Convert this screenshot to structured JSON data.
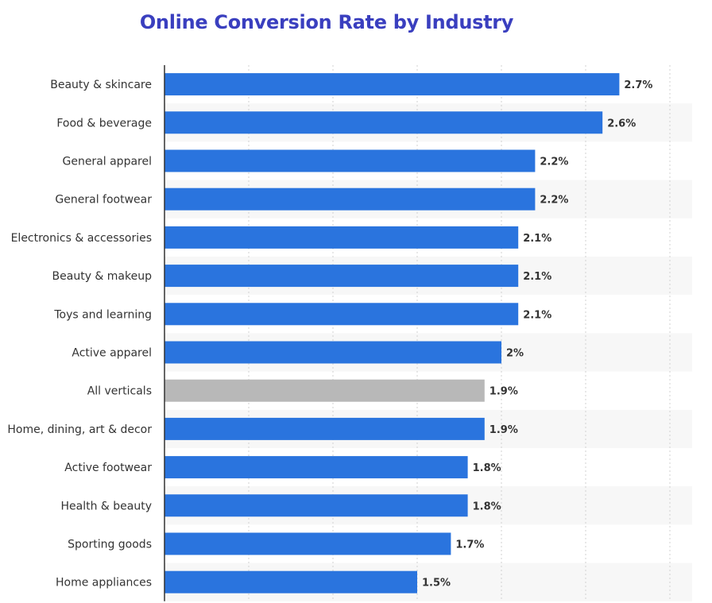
{
  "chart_data": {
    "type": "bar",
    "orientation": "horizontal",
    "title": "Online Conversion Rate by Industry",
    "xlabel": "",
    "ylabel": "",
    "xlim": [
      0,
      3
    ],
    "value_suffix": "%",
    "grid": true,
    "categories": [
      "Beauty & skincare",
      "Food & beverage",
      "General apparel",
      "General footwear",
      "Electronics & accessories",
      "Beauty & makeup",
      "Toys and learning",
      "Active apparel",
      "All verticals",
      "Home, dining, art & decor",
      "Active footwear",
      "Health & beauty",
      "Sporting goods",
      "Home appliances"
    ],
    "values": [
      2.7,
      2.6,
      2.2,
      2.2,
      2.1,
      2.1,
      2.1,
      2,
      1.9,
      1.9,
      1.8,
      1.8,
      1.7,
      1.5
    ],
    "value_labels": [
      "2.7%",
      "2.6%",
      "2.2%",
      "2.2%",
      "2.1%",
      "2.1%",
      "2.1%",
      "2%",
      "1.9%",
      "1.9%",
      "1.8%",
      "1.8%",
      "1.7%",
      "1.5%"
    ],
    "highlight_category": "All verticals",
    "colors": {
      "bar": "#2a74de",
      "highlight": "#b8b8b8",
      "band": "#f7f7f7",
      "grid": "#d0d0d0",
      "axis": "#333333"
    }
  }
}
